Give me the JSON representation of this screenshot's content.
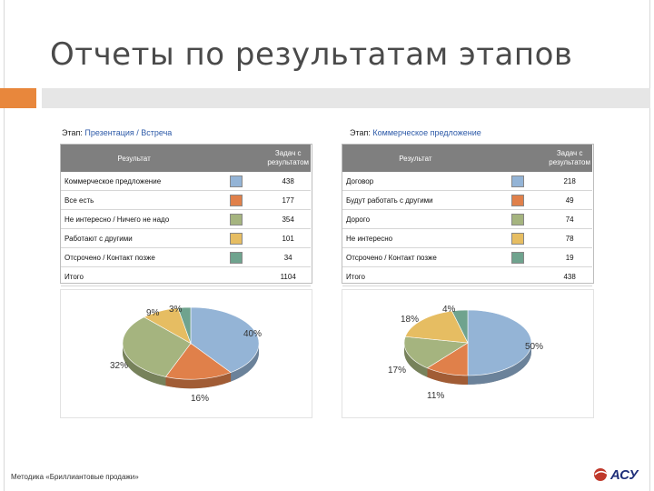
{
  "title": "Отчеты по результатам этапов",
  "left": {
    "stage_prefix": "Этап:",
    "stage_name": "Презентация / Встреча",
    "header_result": "Результат",
    "header_count": "Задач с результатом",
    "rows": [
      {
        "label": "Коммерческое предложение",
        "value": "438",
        "color": "#94b4d6"
      },
      {
        "label": "Все есть",
        "value": "177",
        "color": "#e0804a"
      },
      {
        "label": "Не интересно / Ничего не надо",
        "value": "354",
        "color": "#a5b47f"
      },
      {
        "label": "Работают с другими",
        "value": "101",
        "color": "#e6bd62"
      },
      {
        "label": "Отсрочено / Контакт позже",
        "value": "34",
        "color": "#6fa38e"
      }
    ],
    "total_label": "Итого",
    "total_value": "1104",
    "pie_labels": [
      "40%",
      "16%",
      "32%",
      "9%",
      "3%"
    ],
    "pie_values": [
      40,
      16,
      32,
      9,
      3
    ]
  },
  "right": {
    "stage_prefix": "Этап:",
    "stage_name": "Коммерческое предложение",
    "header_result": "Результат",
    "header_count": "Задач с результатом",
    "rows": [
      {
        "label": "Договор",
        "value": "218",
        "color": "#94b4d6"
      },
      {
        "label": "Будут работать с другими",
        "value": "49",
        "color": "#e0804a"
      },
      {
        "label": "Дорого",
        "value": "74",
        "color": "#a5b47f"
      },
      {
        "label": "Не интересно",
        "value": "78",
        "color": "#e6bd62"
      },
      {
        "label": "Отсрочено / Контакт позже",
        "value": "19",
        "color": "#6fa38e"
      }
    ],
    "total_label": "Итого",
    "total_value": "438",
    "pie_labels": [
      "50%",
      "11%",
      "17%",
      "18%",
      "4%"
    ],
    "pie_values": [
      50,
      11,
      17,
      18,
      4
    ]
  },
  "footer": "Методика «Бриллиантовые продажи»",
  "logo_text": "АСУ"
}
